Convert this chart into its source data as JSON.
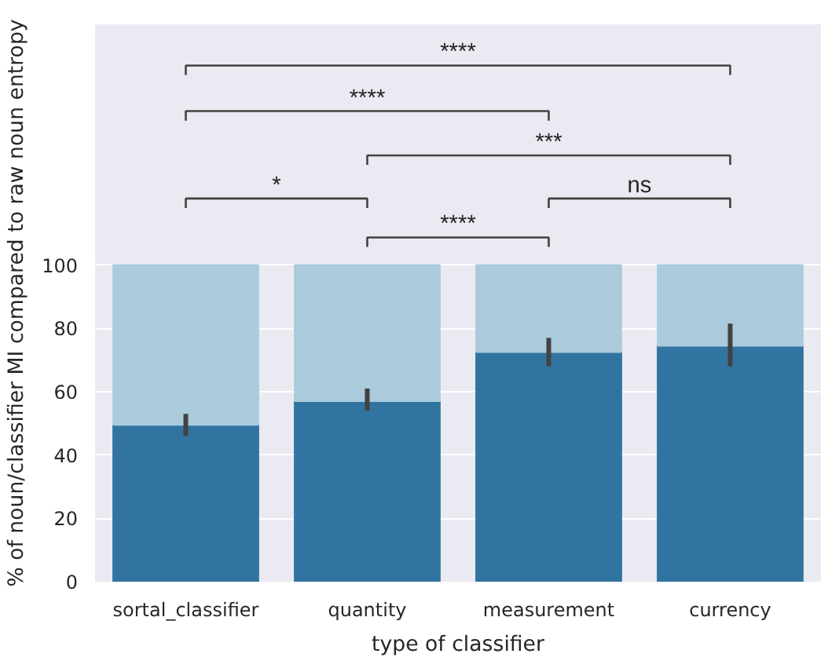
{
  "chart_data": {
    "type": "bar",
    "stacked": true,
    "xlabel": "type of classifier",
    "ylabel": "% of noun/classifier MI compared to raw noun entropy",
    "categories": [
      "sortal_classifier",
      "quantity",
      "measurement",
      "currency"
    ],
    "series": [
      {
        "color": "#3274a1",
        "values": [
          49.5,
          57,
          72.5,
          74.5
        ],
        "errors": [
          [
            46,
            53
          ],
          [
            54,
            61
          ],
          [
            68,
            77
          ],
          [
            68,
            81.5
          ]
        ]
      },
      {
        "color": "#abcadc",
        "values": [
          50.5,
          43,
          27.5,
          25.5
        ]
      }
    ],
    "ylim": [
      0,
      176
    ],
    "yticks": [
      0,
      20,
      40,
      60,
      80,
      100
    ],
    "grid": "y",
    "annotations": [
      "****",
      "****",
      "***",
      "*",
      "ns",
      "****"
    ]
  }
}
